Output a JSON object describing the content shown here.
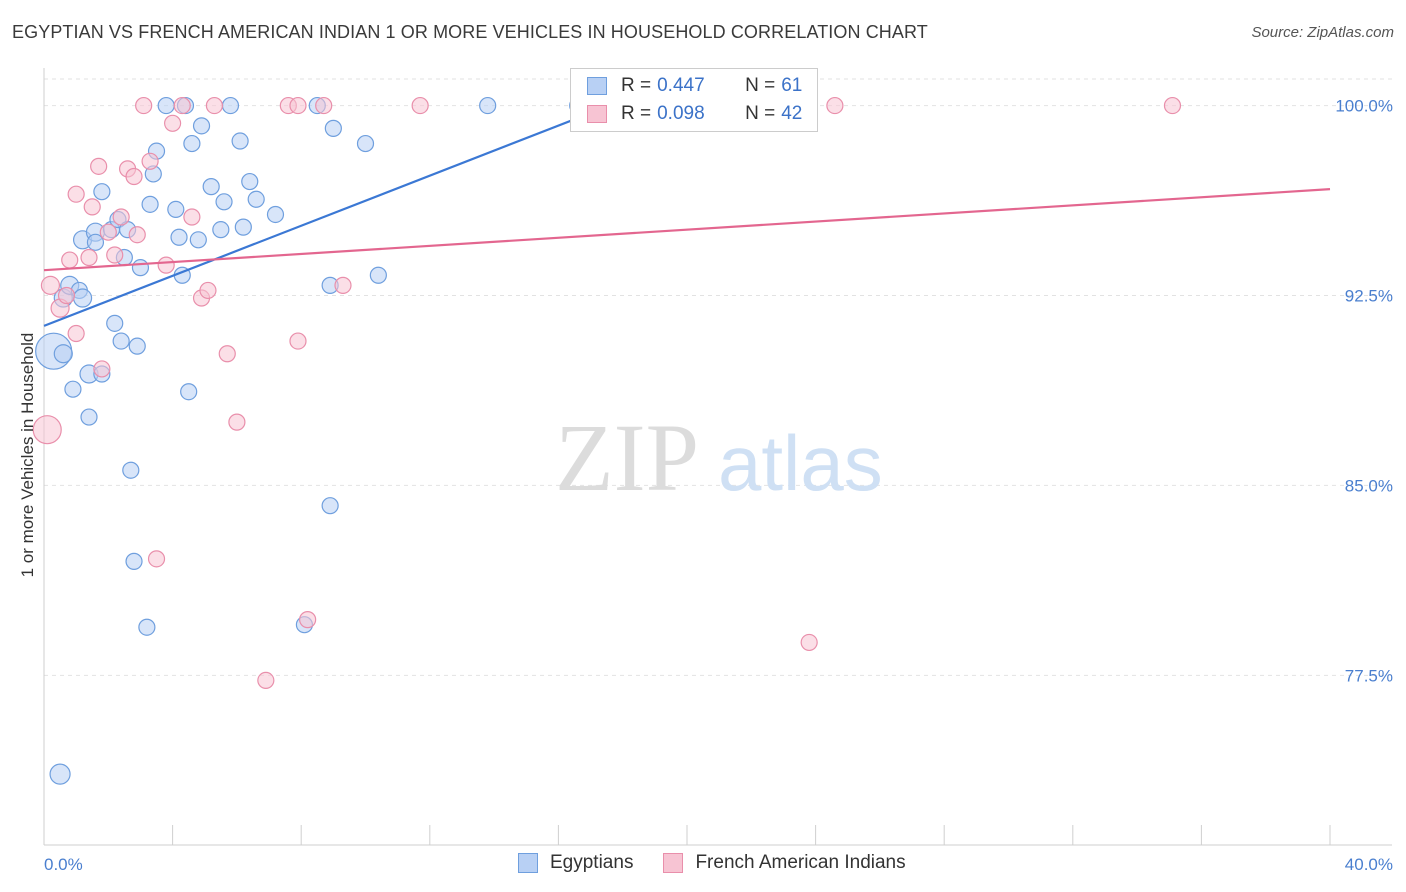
{
  "title": "EGYPTIAN VS FRENCH AMERICAN INDIAN 1 OR MORE VEHICLES IN HOUSEHOLD CORRELATION CHART",
  "source": "Source: ZipAtlas.com",
  "watermark": {
    "zip": "ZIP",
    "atlas": "atlas"
  },
  "legend": {
    "r_label": "R =",
    "n_label": "N =",
    "rows": [
      {
        "name": "Egyptians",
        "r": "0.447",
        "n": "61",
        "fill": "#b8d0f4",
        "stroke": "#6f9fde"
      },
      {
        "name": "French American Indians",
        "r": "0.098",
        "n": "42",
        "fill": "#f7c4d3",
        "stroke": "#e98fab"
      }
    ]
  },
  "chart_data": {
    "type": "scatter",
    "title": "EGYPTIAN VS FRENCH AMERICAN INDIAN 1 OR MORE VEHICLES IN HOUSEHOLD CORRELATION CHART",
    "xlabel": "",
    "ylabel": "1 or more Vehicles in Household",
    "xlim": [
      0,
      40
    ],
    "ylim": [
      70.8,
      101.8
    ],
    "x_ticks": [
      "0.0%",
      "40.0%"
    ],
    "y_ticks": [
      {
        "value": 100.0,
        "label": "100.0%"
      },
      {
        "value": 92.5,
        "label": "92.5%"
      },
      {
        "value": 85.0,
        "label": "85.0%"
      },
      {
        "value": 77.5,
        "label": "77.5%"
      }
    ],
    "series": [
      {
        "name": "Egyptians",
        "color": "#3b78d4",
        "fill": "#b8d0f4",
        "stroke": "#6f9fde",
        "trend": {
          "x": [
            0,
            17.6
          ],
          "y": [
            91.3,
            100.0
          ]
        },
        "points": [
          [
            0.3,
            90.3,
            18
          ],
          [
            0.5,
            73.6,
            10
          ],
          [
            0.6,
            92.4,
            9
          ],
          [
            0.6,
            90.2,
            9
          ],
          [
            0.8,
            92.9,
            9
          ],
          [
            0.9,
            88.8,
            8
          ],
          [
            1.1,
            92.7,
            8
          ],
          [
            1.2,
            92.4,
            9
          ],
          [
            1.2,
            94.7,
            9
          ],
          [
            1.4,
            89.4,
            9
          ],
          [
            1.4,
            87.7,
            8
          ],
          [
            1.6,
            95.0,
            9
          ],
          [
            1.6,
            94.6,
            8
          ],
          [
            1.8,
            89.4,
            8
          ],
          [
            1.8,
            96.6,
            8
          ],
          [
            2.1,
            95.1,
            8
          ],
          [
            2.2,
            91.4,
            8
          ],
          [
            2.3,
            95.5,
            8
          ],
          [
            2.4,
            90.7,
            8
          ],
          [
            2.5,
            94.0,
            8
          ],
          [
            2.6,
            95.1,
            8
          ],
          [
            2.7,
            85.6,
            8
          ],
          [
            2.8,
            82.0,
            8
          ],
          [
            2.9,
            90.5,
            8
          ],
          [
            3.0,
            93.6,
            8
          ],
          [
            3.2,
            79.4,
            8
          ],
          [
            3.3,
            96.1,
            8
          ],
          [
            3.4,
            97.3,
            8
          ],
          [
            3.5,
            98.2,
            8
          ],
          [
            3.8,
            100.0,
            8
          ],
          [
            4.1,
            95.9,
            8
          ],
          [
            4.2,
            94.8,
            8
          ],
          [
            4.3,
            93.3,
            8
          ],
          [
            4.4,
            100.0,
            8
          ],
          [
            4.5,
            88.7,
            8
          ],
          [
            4.6,
            98.5,
            8
          ],
          [
            4.8,
            94.7,
            8
          ],
          [
            4.9,
            99.2,
            8
          ],
          [
            5.2,
            96.8,
            8
          ],
          [
            5.5,
            95.1,
            8
          ],
          [
            5.6,
            96.2,
            8
          ],
          [
            5.8,
            100.0,
            8
          ],
          [
            6.1,
            98.6,
            8
          ],
          [
            6.2,
            95.2,
            8
          ],
          [
            6.4,
            97.0,
            8
          ],
          [
            6.6,
            96.3,
            8
          ],
          [
            7.2,
            95.7,
            8
          ],
          [
            8.1,
            79.5,
            8
          ],
          [
            8.5,
            100.0,
            8
          ],
          [
            8.9,
            92.9,
            8
          ],
          [
            8.9,
            84.2,
            8
          ],
          [
            9.0,
            99.1,
            8
          ],
          [
            10.0,
            98.5,
            8
          ],
          [
            10.4,
            93.3,
            8
          ],
          [
            13.8,
            100.0,
            8
          ],
          [
            16.6,
            100.0,
            8
          ],
          [
            17.1,
            100.0,
            8
          ],
          [
            17.4,
            100.0,
            8
          ],
          [
            17.8,
            100.0,
            8
          ],
          [
            18.2,
            100.0,
            8
          ],
          [
            18.6,
            100.0,
            8
          ]
        ]
      },
      {
        "name": "French American Indians",
        "color": "#e3668f",
        "fill": "#f7c4d3",
        "stroke": "#e98fab",
        "trend": {
          "x": [
            0,
            40
          ],
          "y": [
            93.5,
            96.7
          ]
        },
        "points": [
          [
            0.1,
            87.2,
            14
          ],
          [
            0.2,
            92.9,
            9
          ],
          [
            0.5,
            92.0,
            9
          ],
          [
            0.7,
            92.5,
            8
          ],
          [
            0.8,
            93.9,
            8
          ],
          [
            1.0,
            96.5,
            8
          ],
          [
            1.0,
            91.0,
            8
          ],
          [
            1.4,
            94.0,
            8
          ],
          [
            1.5,
            96.0,
            8
          ],
          [
            1.7,
            97.6,
            8
          ],
          [
            1.8,
            89.6,
            8
          ],
          [
            2.0,
            95.0,
            8
          ],
          [
            2.2,
            94.1,
            8
          ],
          [
            2.4,
            95.6,
            8
          ],
          [
            2.6,
            97.5,
            8
          ],
          [
            2.8,
            97.2,
            8
          ],
          [
            2.9,
            94.9,
            8
          ],
          [
            3.1,
            100.0,
            8
          ],
          [
            3.3,
            97.8,
            8
          ],
          [
            3.5,
            82.1,
            8
          ],
          [
            3.8,
            93.7,
            8
          ],
          [
            4.0,
            99.3,
            8
          ],
          [
            4.3,
            100.0,
            8
          ],
          [
            4.6,
            95.6,
            8
          ],
          [
            4.9,
            92.4,
            8
          ],
          [
            5.1,
            92.7,
            8
          ],
          [
            5.3,
            100.0,
            8
          ],
          [
            5.7,
            90.2,
            8
          ],
          [
            6.0,
            87.5,
            8
          ],
          [
            6.9,
            77.3,
            8
          ],
          [
            7.6,
            100.0,
            8
          ],
          [
            7.9,
            100.0,
            8
          ],
          [
            7.9,
            90.7,
            8
          ],
          [
            8.2,
            79.7,
            8
          ],
          [
            8.7,
            100.0,
            8
          ],
          [
            9.3,
            92.9,
            8
          ],
          [
            11.7,
            100.0,
            8
          ],
          [
            18.4,
            100.0,
            8
          ],
          [
            18.9,
            100.0,
            8
          ],
          [
            23.8,
            78.8,
            8
          ],
          [
            24.6,
            100.0,
            8
          ],
          [
            35.1,
            100.0,
            8
          ]
        ]
      }
    ]
  }
}
